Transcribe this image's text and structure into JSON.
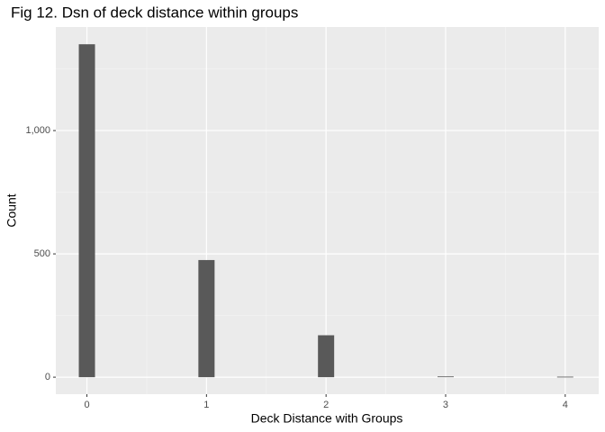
{
  "chart_data": {
    "type": "bar",
    "title": "Fig 12. Dsn of deck distance within groups",
    "x_label": "Deck Distance with Groups",
    "y_label": "Count",
    "x": [
      0,
      1,
      2,
      3,
      4
    ],
    "values": [
      1350,
      475,
      170,
      3,
      2
    ],
    "color": "#595959",
    "xlim": [
      -0.26,
      4.28
    ],
    "xticks": [
      0,
      1,
      2,
      3,
      4
    ],
    "ylim": [
      -69,
      1420
    ],
    "yticks": [
      0,
      500,
      {
        "value": 1000,
        "label": "1,000"
      }
    ],
    "grid": true
  }
}
